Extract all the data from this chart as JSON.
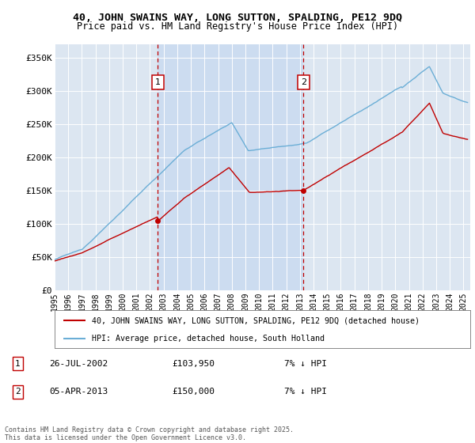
{
  "title_line1": "40, JOHN SWAINS WAY, LONG SUTTON, SPALDING, PE12 9DQ",
  "title_line2": "Price paid vs. HM Land Registry's House Price Index (HPI)",
  "ylim": [
    0,
    370000
  ],
  "yticks": [
    0,
    50000,
    100000,
    150000,
    200000,
    250000,
    300000,
    350000
  ],
  "ytick_labels": [
    "£0",
    "£50K",
    "£100K",
    "£150K",
    "£200K",
    "£250K",
    "£300K",
    "£350K"
  ],
  "legend_entry1": "40, JOHN SWAINS WAY, LONG SUTTON, SPALDING, PE12 9DQ (detached house)",
  "legend_entry2": "HPI: Average price, detached house, South Holland",
  "annotation1_date": "26-JUL-2002",
  "annotation1_price": "£103,950",
  "annotation1_hpi": "7% ↓ HPI",
  "annotation2_date": "05-APR-2013",
  "annotation2_price": "£150,000",
  "annotation2_hpi": "7% ↓ HPI",
  "footer": "Contains HM Land Registry data © Crown copyright and database right 2025.\nThis data is licensed under the Open Government Licence v3.0.",
  "sale1_year": 2002.57,
  "sale1_price": 103950,
  "sale2_year": 2013.26,
  "sale2_price": 150000,
  "hpi_color": "#6baed6",
  "price_color": "#c00000",
  "background_color": "#dce6f1",
  "shade_color": "#c6d9f0",
  "plot_bg_color": "#ffffff",
  "xlim_left": 1995.0,
  "xlim_right": 2025.5
}
